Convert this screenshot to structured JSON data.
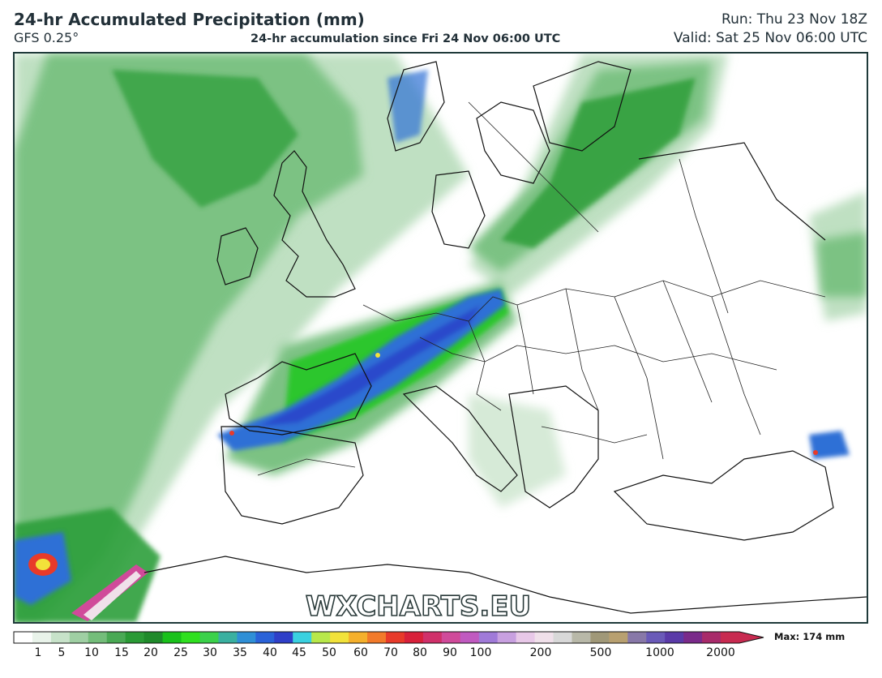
{
  "header": {
    "title": "24-hr Accumulated Precipitation (mm)",
    "model": "GFS 0.25°",
    "accumulation": "24-hr accumulation since Fri 24 Nov 06:00 UTC",
    "run": "Run: Thu 23 Nov 18Z",
    "valid": "Valid: Sat 25 Nov 06:00 UTC"
  },
  "watermark": "WXCHARTS.EU",
  "legend": {
    "max_label": "Max: 174 mm",
    "ticks": [
      "1",
      "5",
      "10",
      "15",
      "20",
      "25",
      "30",
      "35",
      "40",
      "45",
      "50",
      "60",
      "70",
      "80",
      "90",
      "100",
      "200",
      "500",
      "1000",
      "2000"
    ],
    "colors": [
      "#ffffff",
      "#e9f3ea",
      "#c7e2c9",
      "#9fcfa3",
      "#74bd7a",
      "#4aa954",
      "#2a9a35",
      "#1f8a2a",
      "#19c11a",
      "#2fe01f",
      "#3bd14a",
      "#3ab0a0",
      "#2f8fd6",
      "#2a62d8",
      "#2f3fc8",
      "#3ad1e0",
      "#b8e84a",
      "#f2e23a",
      "#f5b02c",
      "#f27a2a",
      "#e83a2a",
      "#d8203a",
      "#d0306a",
      "#d04a9a",
      "#c05ac0",
      "#a07ad8",
      "#c8a0e0",
      "#e8c8e8",
      "#f0e0ea",
      "#d8d8d8",
      "#b8b8a8",
      "#a09878",
      "#b8a070",
      "#8878a8",
      "#6a5ab8",
      "#5a3aa8",
      "#7a2a8a",
      "#a82a6a",
      "#c82a50"
    ],
    "colors_note": "",
    "precip_palette": {
      "light": "#cfe6d0",
      "green1": "#7cc283",
      "green2": "#2f9e3a",
      "bright": "#22c623",
      "teal": "#2fbf7f",
      "blue": "#2f6fd6",
      "deepblue": "#2a3fc8"
    }
  }
}
